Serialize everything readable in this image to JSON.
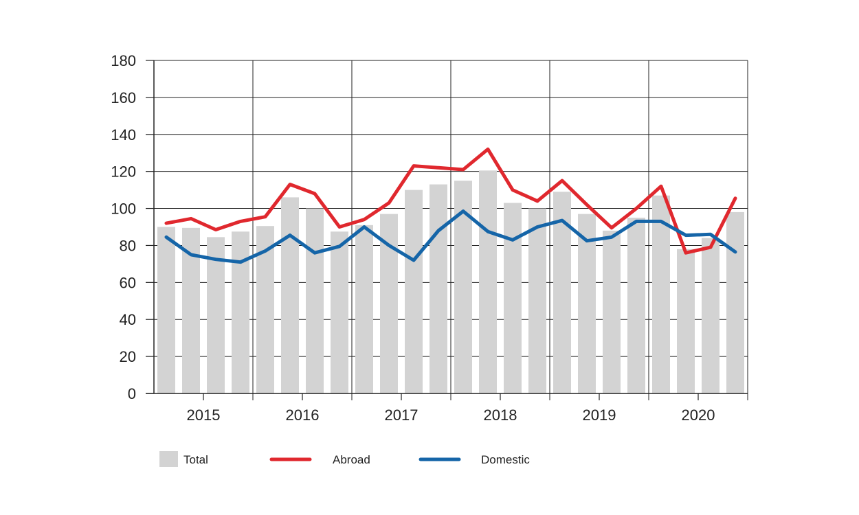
{
  "chart_data": {
    "type": "bar+line",
    "title": "",
    "xlabel": "",
    "ylabel": "",
    "ylim": [
      0,
      180
    ],
    "yticks": [
      0,
      20,
      40,
      60,
      80,
      100,
      120,
      140,
      160,
      180
    ],
    "years": [
      "2015",
      "2016",
      "2017",
      "2018",
      "2019",
      "2020"
    ],
    "quarters_per_year": 4,
    "series": [
      {
        "name": "Total",
        "kind": "bar",
        "color": "#d3d3d3",
        "values": [
          90,
          89.5,
          84.5,
          87.5,
          90.5,
          106,
          100,
          87.5,
          91,
          97,
          110,
          113,
          115,
          120.5,
          103,
          100,
          109,
          97,
          88,
          95,
          107,
          78,
          84,
          98
        ]
      },
      {
        "name": "Abroad",
        "kind": "line",
        "color": "#e0282e",
        "values": [
          92,
          94.5,
          88.5,
          93,
          95.5,
          113,
          108,
          90,
          94,
          103,
          123,
          122,
          121,
          132,
          110,
          104,
          115,
          102,
          89.5,
          100,
          112,
          76,
          79,
          105.5
        ]
      },
      {
        "name": "Domestic",
        "kind": "line",
        "color": "#1565a8",
        "values": [
          84.5,
          75,
          72.5,
          71,
          77,
          85.5,
          76,
          79.5,
          90,
          80,
          72,
          88,
          98.5,
          87.5,
          83,
          90,
          93.5,
          82.5,
          84.5,
          93,
          93,
          85.5,
          86,
          76.5
        ]
      }
    ],
    "legend": [
      "Total",
      "Abroad",
      "Domestic"
    ],
    "legend_position": "bottom-left",
    "grid": true
  },
  "colors": {
    "axis": "#222222",
    "grid": "#222222"
  }
}
